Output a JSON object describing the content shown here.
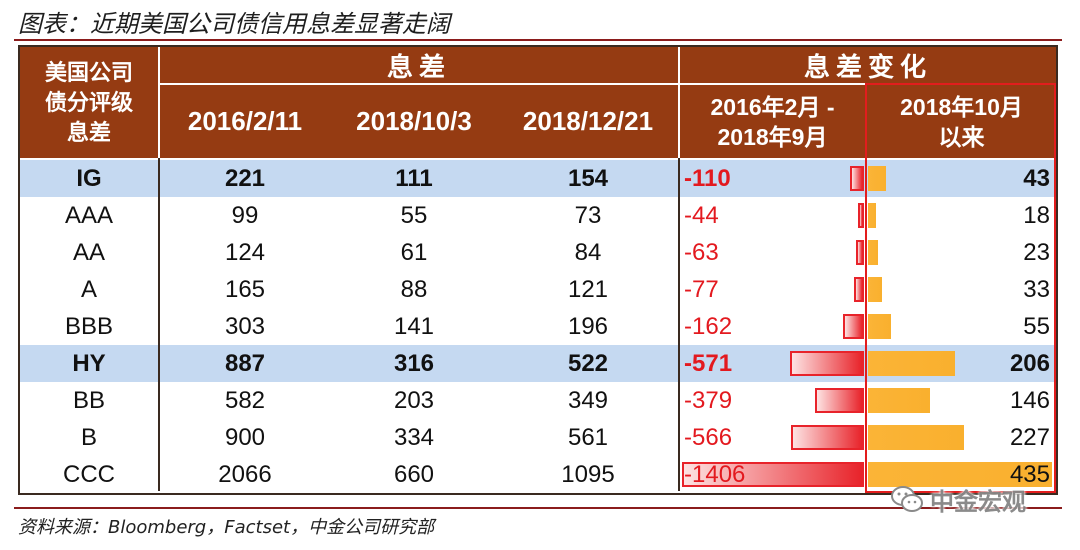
{
  "title": "图表：近期美国公司债信用息差显著走阔",
  "source": "资料来源：Bloomberg，Factset，中金公司研究部",
  "watermark": {
    "text": "中金宏观",
    "icon": "wechat-icon"
  },
  "colors": {
    "header_bg": "#953b12",
    "header_text": "#ffffff",
    "highlight_row_bg": "#c5d9f1",
    "negative_value": "#e3191f",
    "negative_bar": "#e8232a",
    "positive_bar": "#fbb437",
    "frame": "#e21d1d",
    "rule": "#8b1c1c"
  },
  "chart_data": {
    "type": "table",
    "header": {
      "rating": [
        "美国公司",
        "债分评级",
        "息差"
      ],
      "spread_group": "息差",
      "change_group": "息差变化",
      "spread_dates": [
        "2016/2/11",
        "2018/10/3",
        "2018/12/21"
      ],
      "change_periods": [
        [
          "2016年2月 -",
          "2018年9月"
        ],
        [
          "2018年10月",
          "以来"
        ]
      ]
    },
    "rows": [
      {
        "rating": "IG",
        "spreads": [
          221,
          111,
          154
        ],
        "changes": [
          -110,
          43
        ],
        "highlight": true
      },
      {
        "rating": "AAA",
        "spreads": [
          99,
          55,
          73
        ],
        "changes": [
          -44,
          18
        ],
        "highlight": false
      },
      {
        "rating": "AA",
        "spreads": [
          124,
          61,
          84
        ],
        "changes": [
          -63,
          23
        ],
        "highlight": false
      },
      {
        "rating": "A",
        "spreads": [
          165,
          88,
          121
        ],
        "changes": [
          -77,
          33
        ],
        "highlight": false
      },
      {
        "rating": "BBB",
        "spreads": [
          303,
          141,
          196
        ],
        "changes": [
          -162,
          55
        ],
        "highlight": false
      },
      {
        "rating": "HY",
        "spreads": [
          887,
          316,
          522
        ],
        "changes": [
          -571,
          206
        ],
        "highlight": true
      },
      {
        "rating": "BB",
        "spreads": [
          582,
          203,
          349
        ],
        "changes": [
          -379,
          146
        ],
        "highlight": false
      },
      {
        "rating": "B",
        "spreads": [
          900,
          334,
          561
        ],
        "changes": [
          -566,
          227
        ],
        "highlight": false
      },
      {
        "rating": "CCC",
        "spreads": [
          2066,
          660,
          1095
        ],
        "changes": [
          -1406,
          435
        ],
        "highlight": false
      }
    ]
  }
}
